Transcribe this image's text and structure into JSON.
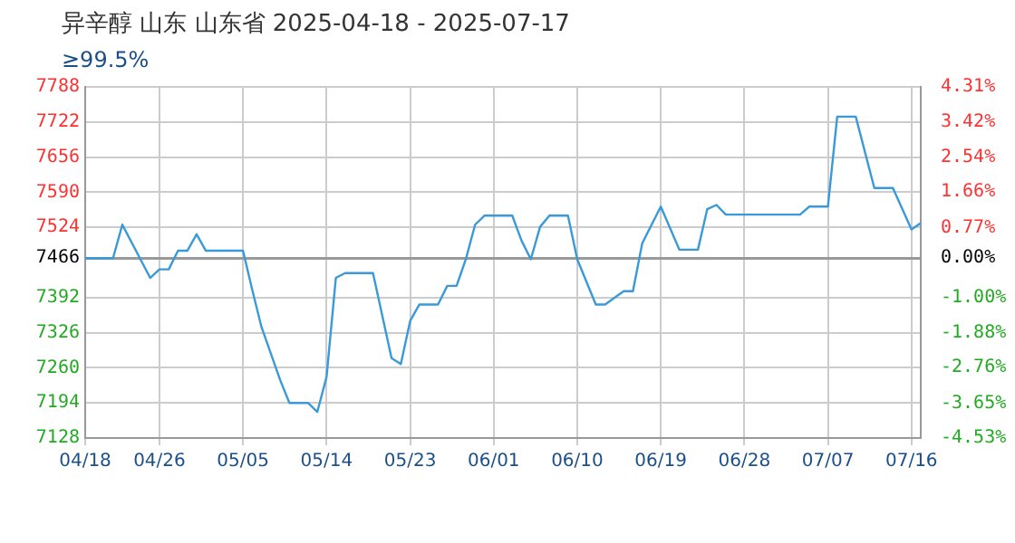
{
  "chart_data": {
    "type": "line",
    "title": "异辛醇 山东 山东省 2025-04-18 - 2025-07-17",
    "subtitle": "≥99.5%",
    "x": [
      "2025-04-18",
      "2025-04-21",
      "2025-04-22",
      "2025-04-25",
      "2025-04-26",
      "2025-04-27",
      "2025-04-28",
      "2025-04-29",
      "2025-04-30",
      "2025-05-01",
      "2025-05-05",
      "2025-05-06",
      "2025-05-07",
      "2025-05-09",
      "2025-05-10",
      "2025-05-12",
      "2025-05-13",
      "2025-05-14",
      "2025-05-15",
      "2025-05-16",
      "2025-05-19",
      "2025-05-21",
      "2025-05-22",
      "2025-05-23",
      "2025-05-24",
      "2025-05-26",
      "2025-05-27",
      "2025-05-28",
      "2025-05-29",
      "2025-05-30",
      "2025-05-31",
      "2025-06-03",
      "2025-06-04",
      "2025-06-05",
      "2025-06-06",
      "2025-06-07",
      "2025-06-09",
      "2025-06-10",
      "2025-06-12",
      "2025-06-13",
      "2025-06-15",
      "2025-06-16",
      "2025-06-17",
      "2025-06-19",
      "2025-06-21",
      "2025-06-23",
      "2025-06-24",
      "2025-06-25",
      "2025-06-26",
      "2025-07-04",
      "2025-07-05",
      "2025-07-07",
      "2025-07-08",
      "2025-07-10",
      "2025-07-12",
      "2025-07-14",
      "2025-07-16",
      "2025-07-17"
    ],
    "series": [
      {
        "color": "#3a9ad9",
        "values": [
          7466,
          7466,
          7529,
          7429,
          7445,
          7445,
          7480,
          7480,
          7511,
          7480,
          7480,
          7406,
          7336,
          7237,
          7194,
          7194,
          7177,
          7243,
          7429,
          7438,
          7438,
          7278,
          7267,
          7348,
          7379,
          7379,
          7414,
          7414,
          7464,
          7529,
          7546,
          7546,
          7499,
          7464,
          7525,
          7546,
          7546,
          7464,
          7379,
          7379,
          7404,
          7404,
          7494,
          7563,
          7482,
          7482,
          7558,
          7566,
          7548,
          7548,
          7563,
          7563,
          7732,
          7732,
          7598,
          7598,
          7520,
          7532
        ]
      }
    ],
    "xlim": [
      "2025-04-18",
      "2025-07-17"
    ],
    "xticks": [
      {
        "value": "2025-04-18",
        "label": "04/18"
      },
      {
        "value": "2025-04-26",
        "label": "04/26"
      },
      {
        "value": "2025-05-05",
        "label": "05/05"
      },
      {
        "value": "2025-05-14",
        "label": "05/14"
      },
      {
        "value": "2025-05-23",
        "label": "05/23"
      },
      {
        "value": "2025-06-01",
        "label": "06/01"
      },
      {
        "value": "2025-06-10",
        "label": "06/10"
      },
      {
        "value": "2025-06-19",
        "label": "06/19"
      },
      {
        "value": "2025-06-28",
        "label": "06/28"
      },
      {
        "value": "2025-07-07",
        "label": "07/07"
      },
      {
        "value": "2025-07-16",
        "label": "07/16"
      }
    ],
    "ylim": [
      7128,
      7788
    ],
    "yticks": [
      7788,
      7722,
      7656,
      7590,
      7524,
      7466,
      7392,
      7326,
      7260,
      7194,
      7128
    ],
    "y2lim": [
      -4.53,
      4.31
    ],
    "y2ticks": [
      {
        "value": 4.31,
        "label": "4.31%"
      },
      {
        "value": 3.42,
        "label": "3.42%"
      },
      {
        "value": 2.54,
        "label": "2.54%"
      },
      {
        "value": 1.66,
        "label": "1.66%"
      },
      {
        "value": 0.77,
        "label": "0.77%"
      },
      {
        "value": 0,
        "label": "0.00%"
      },
      {
        "value": -1.0,
        "label": "-1.00%"
      },
      {
        "value": -1.88,
        "label": "-1.88%"
      },
      {
        "value": -2.76,
        "label": "-2.76%"
      },
      {
        "value": -3.65,
        "label": "-3.65%"
      },
      {
        "value": -4.53,
        "label": "-4.53%"
      }
    ],
    "grid": true,
    "legend": false,
    "marker": "none",
    "line_style": "solid"
  }
}
